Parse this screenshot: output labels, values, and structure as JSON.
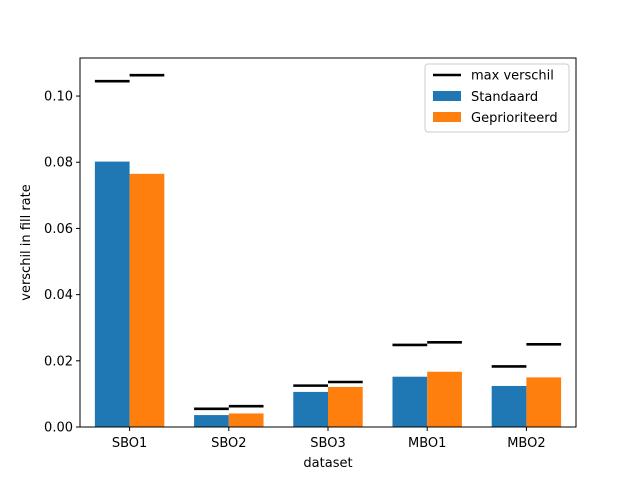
{
  "chart_data": {
    "type": "bar",
    "title": "",
    "xlabel": "dataset",
    "ylabel": "verschil in fill rate",
    "categories": [
      "SBO1",
      "SBO2",
      "SBO3",
      "MBO1",
      "MBO2"
    ],
    "ylim": [
      0,
      0.1115
    ],
    "yticks": [
      0.0,
      0.02,
      0.04,
      0.06,
      0.08,
      0.1
    ],
    "ytick_labels": [
      "0.00",
      "0.02",
      "0.04",
      "0.06",
      "0.08",
      "0.10"
    ],
    "grid": false,
    "legend_position": "top-right",
    "series": [
      {
        "name": "Standaard",
        "color": "#1f77b4",
        "values": [
          0.0802,
          0.0036,
          0.0106,
          0.0152,
          0.0124
        ]
      },
      {
        "name": "Geprioriteerd",
        "color": "#ff7f0e",
        "values": [
          0.0765,
          0.0041,
          0.0121,
          0.0167,
          0.015
        ]
      }
    ],
    "max_verschil": {
      "name": "max verschil",
      "color": "#000000",
      "values": [
        [
          0.1045,
          0.1063
        ],
        [
          0.0055,
          0.0063
        ],
        [
          0.0125,
          0.0136
        ],
        [
          0.0248,
          0.0256
        ],
        [
          0.0183,
          0.025
        ]
      ]
    }
  }
}
